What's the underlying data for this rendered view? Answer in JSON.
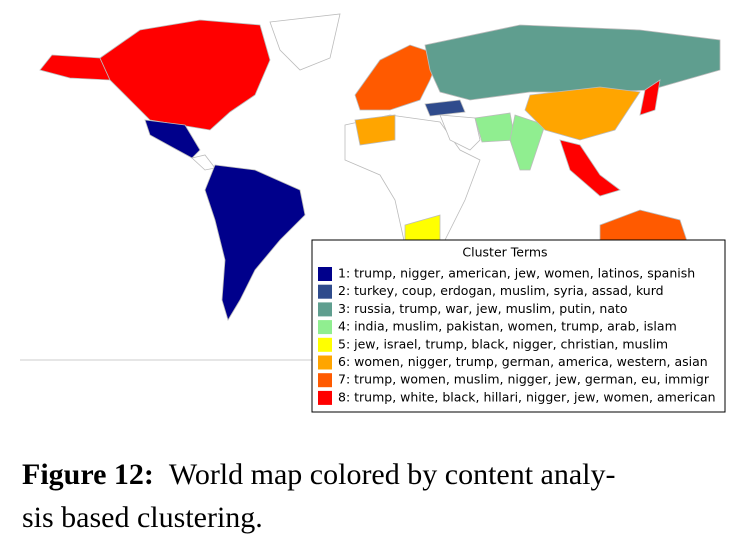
{
  "figure": {
    "legend": {
      "title": "Cluster Terms",
      "items": [
        {
          "label": "1: trump, nigger, american, jew, women, latinos, spanish",
          "color": "#00008b"
        },
        {
          "label": "2: turkey, coup, erdogan, muslim, syria, assad, kurd",
          "color": "#2f4b8c"
        },
        {
          "label": "3: russia, trump, war, jew, muslim, putin, nato",
          "color": "#5f9e8f"
        },
        {
          "label": "4: india, muslim, pakistan, women, trump, arab, islam",
          "color": "#90ee90"
        },
        {
          "label": "5: jew, israel, trump, black, nigger, christian, muslim",
          "color": "#ffff00"
        },
        {
          "label": "6: women, nigger, trump, german, america, western, asian",
          "color": "#ffa500"
        },
        {
          "label": "7: trump, women, muslim, nigger, jew, german, eu, immigr",
          "color": "#ff5a00"
        },
        {
          "label": "8: trump, white, black, hillari, nigger, jew, women, american",
          "color": "#ff0000"
        }
      ]
    },
    "caption": {
      "label": "Figure 12:",
      "lines": [
        "World map colored by content analy-",
        "sis based clustering."
      ]
    }
  }
}
